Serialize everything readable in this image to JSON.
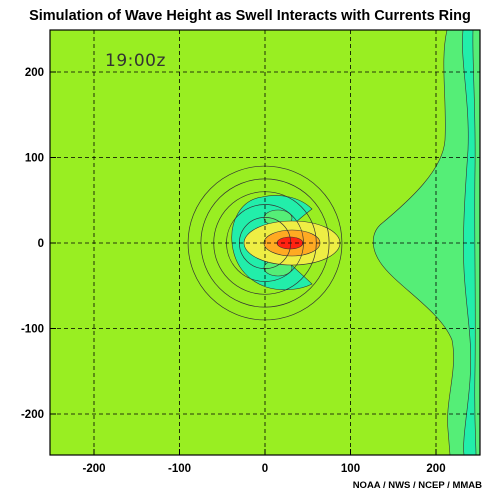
{
  "title": "Simulation of Wave Height as Swell Interacts with Currents Ring",
  "credit": "NOAA / NWS / NCEP / MMAB",
  "time_label": "19:00z",
  "chart_data": {
    "type": "heatmap",
    "title": "Simulation of Wave Height as Swell Interacts with Currents Ring",
    "xlabel": "",
    "ylabel": "",
    "xlim": [
      -250,
      250
    ],
    "ylim": [
      -250,
      250
    ],
    "xticks": [
      -200,
      -100,
      0,
      100,
      200
    ],
    "yticks": [
      -200,
      -100,
      0,
      100,
      200
    ],
    "grid": true,
    "colors": {
      "background": "#99ee22",
      "teal": "#22eeaa",
      "greenish_teal": "#55ee77",
      "yellow": "#eeee44",
      "orange": "#ffaa22",
      "red": "#ff2211",
      "contour": "#333333",
      "grid": "#000000"
    },
    "current_ring": {
      "center": [
        0,
        0
      ],
      "radii": [
        30,
        45,
        60,
        75,
        90
      ]
    },
    "features": [
      {
        "name": "wave-height-maximum",
        "center": [
          28,
          0
        ],
        "level": "high"
      },
      {
        "name": "shadow-lobe-north",
        "center": [
          15,
          30
        ],
        "level": "low"
      },
      {
        "name": "shadow-lobe-south",
        "center": [
          15,
          -30
        ],
        "level": "low"
      },
      {
        "name": "leeward-band-east",
        "x_range": [
          130,
          250
        ],
        "level": "low"
      }
    ]
  }
}
